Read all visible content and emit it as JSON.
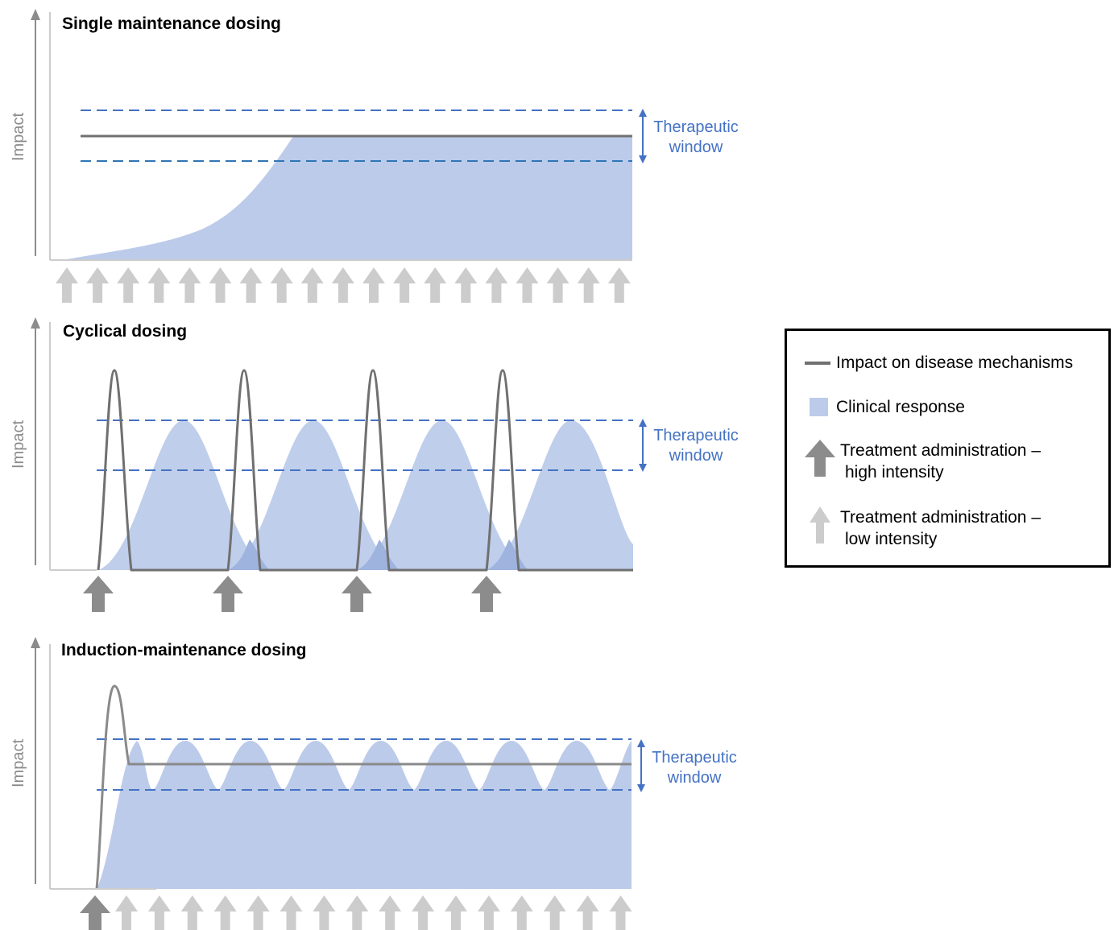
{
  "panels": [
    {
      "title": "Single maintenance dosing",
      "axis_label": "Impact",
      "therapeutic_window": "Therapeutic\nwindow"
    },
    {
      "title": "Cyclical dosing",
      "axis_label": "Impact",
      "therapeutic_window": "Therapeutic\nwindow"
    },
    {
      "title": "Induction-maintenance dosing",
      "axis_label": "Impact",
      "therapeutic_window": "Therapeutic\nwindow"
    }
  ],
  "legend": {
    "items": [
      {
        "label_line1": "Impact on disease mechanisms",
        "label_line2": ""
      },
      {
        "label_line1": "Clinical response",
        "label_line2": ""
      },
      {
        "label_line1": "Treatment administration –",
        "label_line2": "high intensity"
      },
      {
        "label_line1": "Treatment administration –",
        "label_line2": "low intensity"
      }
    ]
  },
  "colors": {
    "clinical_response": "#bccbea",
    "impact_line": "#707070",
    "therapeutic_window": "#4472c4",
    "arrow_high": "#8c8c8c",
    "arrow_low": "#cccccc",
    "axis": "#8c8c8c"
  },
  "arrow_counts": {
    "single_low": 19,
    "cyclical_high": 4,
    "induction_high": 1,
    "induction_low": 16
  }
}
